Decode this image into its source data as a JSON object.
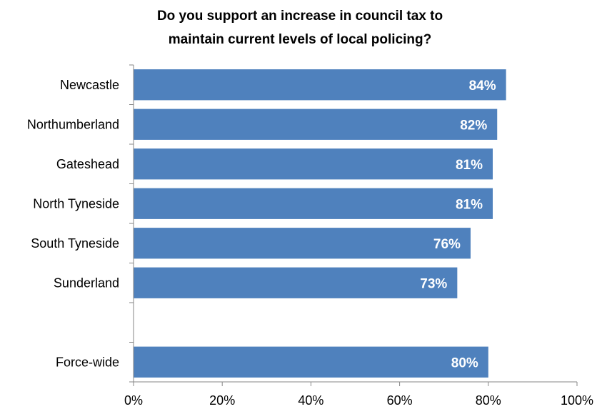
{
  "chart_data": {
    "type": "bar",
    "orientation": "horizontal",
    "title_lines": [
      "Do you support an increase in council tax to",
      "maintain current levels of local policing?"
    ],
    "categories": [
      "Newcastle",
      "Northumberland",
      "Gateshead",
      "North Tyneside",
      "South Tyneside",
      "Sunderland",
      "",
      "Force-wide"
    ],
    "values": [
      84,
      82,
      81,
      81,
      76,
      73,
      null,
      80
    ],
    "data_labels": [
      "84%",
      "82%",
      "81%",
      "81%",
      "76%",
      "73%",
      "",
      "80%"
    ],
    "x_ticks": [
      0,
      20,
      40,
      60,
      80,
      100
    ],
    "x_tick_labels": [
      "0%",
      "20%",
      "40%",
      "60%",
      "80%",
      "100%"
    ],
    "xlim": [
      0,
      100
    ],
    "xlabel": "",
    "ylabel": "",
    "grid": false,
    "legend": "none",
    "bar_color": "#4F81BD",
    "label_color": "#FFFFFF",
    "axis_color": "#868686"
  }
}
